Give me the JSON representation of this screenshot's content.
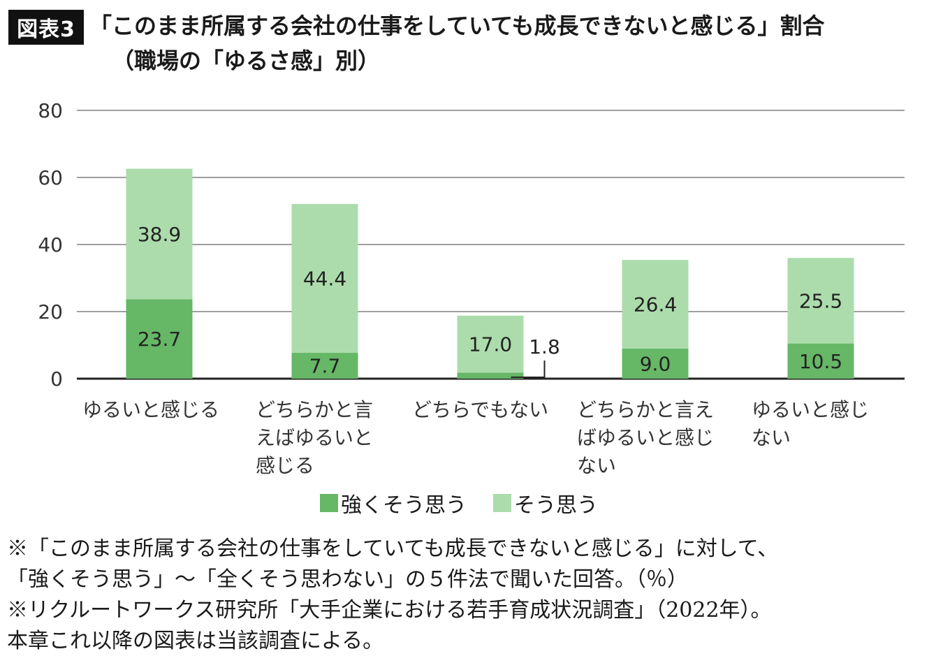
{
  "header": {
    "badge": "図表3",
    "title": "「このまま所属する会社の仕事をしていても成長できないと感じる」割合",
    "subtitle": "（職場の「ゆるさ感」別）"
  },
  "chart_data": {
    "type": "bar",
    "stacked": true,
    "categories": [
      [
        "ゆるいと感じる"
      ],
      [
        "どちらかと言",
        "えばゆるいと",
        "感じる"
      ],
      [
        "どちらでもない"
      ],
      [
        "どちらかと言え",
        "ばゆるいと感じ",
        "ない"
      ],
      [
        "ゆるいと感じ",
        "ない"
      ]
    ],
    "series": [
      {
        "name": "強くそう思う",
        "values": [
          23.7,
          7.7,
          1.8,
          9.0,
          10.5
        ],
        "labels": [
          "23.7",
          "7.7",
          "1.8",
          "9.0",
          "10.5"
        ],
        "color": "#66b766"
      },
      {
        "name": "そう思う",
        "values": [
          38.9,
          44.4,
          17.0,
          26.4,
          25.5
        ],
        "labels": [
          "38.9",
          "44.4",
          "17.0",
          "26.4",
          "25.5"
        ],
        "color": "#acdcac"
      }
    ],
    "y_ticks": [
      "0",
      "20",
      "40",
      "60",
      "80"
    ],
    "ylim": [
      0,
      80
    ],
    "grid": true,
    "legend_position": "bottom-center"
  },
  "notes": [
    "※「このまま所属する会社の仕事をしていても成長できないと感じる」に対して、",
    "「強くそう思う」〜「全くそう思わない」の５件法で聞いた回答。（％）",
    "※リクルートワークス研究所「大手企業における若手育成状況調査」（2022年）。",
    "本章これ以降の図表は当該調査による。"
  ]
}
